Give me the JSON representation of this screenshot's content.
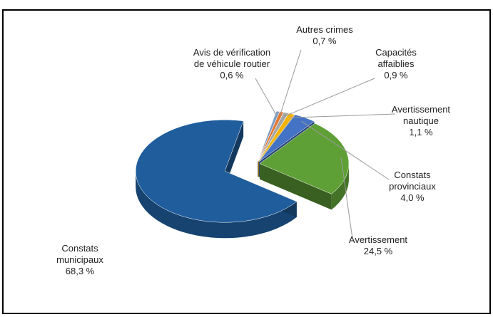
{
  "chart_data": {
    "type": "pie",
    "categories": [
      "Avis de vérification de véhicule routier",
      "Autres crimes",
      "Capacités affaiblies",
      "Avertissement nautique",
      "Constats provinciaux",
      "Avertissement",
      "Constats municipaux"
    ],
    "values": [
      0.6,
      0.7,
      0.9,
      1.1,
      4.0,
      24.5,
      68.3
    ],
    "value_labels": [
      "0,6 %",
      "0,7 %",
      "0,9 %",
      "1,1 %",
      "4,0 %",
      "24,5 %",
      "68,3 %"
    ],
    "colors": [
      "#7f9cc4",
      "#e2762f",
      "#a5a5a5",
      "#f2b400",
      "#4472c4",
      "#5fa036",
      "#1f5d9c"
    ]
  }
}
